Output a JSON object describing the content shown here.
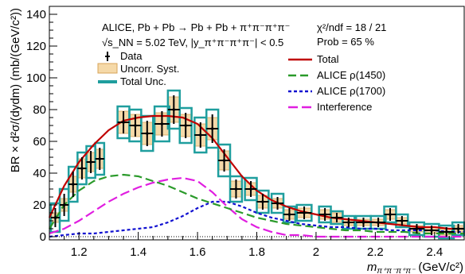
{
  "chart_data": {
    "type": "scatter",
    "xlabel": "m_{π⁺π⁻π⁺π⁻} (GeV/c²)",
    "xlabel_main": "m",
    "xlabel_sub": "π⁺π⁻π⁺π⁻",
    "xlabel_unit": "(GeV/c²)",
    "ylabel": "BR × d²σ/(dydm) (mb/(GeV/c²))",
    "xlim": [
      1.1,
      2.5
    ],
    "ylim": [
      -2,
      145
    ],
    "xticks": [
      1.2,
      1.4,
      1.6,
      1.8,
      2.0,
      2.2,
      2.4
    ],
    "xtick_labels": [
      "1.2",
      "1.4",
      "1.6",
      "1.8",
      "2",
      "2.2",
      "2.4"
    ],
    "yticks": [
      0,
      20,
      40,
      60,
      80,
      100,
      120,
      140
    ],
    "ytick_labels": [
      "0",
      "20",
      "40",
      "60",
      "80",
      "100",
      "120",
      "140"
    ],
    "annotations": {
      "system": "ALICE, Pb + Pb → Pb + Pb + π⁺π⁻π⁺π⁻",
      "energy": "√s_NN = 5.02 TeV, |y_π⁺π⁻π⁺π⁻| < 0.5",
      "chi2": "χ²/ndf = 18 / 21",
      "prob": "Prob = 65 %"
    },
    "legend_left": [
      "Data",
      "Uncorr. Syst.",
      "Total Unc."
    ],
    "legend_right": [
      "Total",
      "ALICE ρ(1450)",
      "ALICE ρ(1700)",
      "Interference"
    ],
    "colors": {
      "total": "#c00000",
      "rho1450": "#2a9a2a",
      "rho1700": "#1010d0",
      "interference": "#e01ee0",
      "syst_fill": "#f5d9a8",
      "syst_edge": "#d8a45a",
      "total_unc": "#1f9e9e"
    },
    "points": {
      "x": [
        1.12,
        1.15,
        1.18,
        1.21,
        1.24,
        1.27,
        1.35,
        1.39,
        1.43,
        1.48,
        1.52,
        1.56,
        1.61,
        1.65,
        1.69,
        1.73,
        1.78,
        1.82,
        1.87,
        1.91,
        1.96,
        2.03,
        2.07,
        2.11,
        2.16,
        2.21,
        2.25,
        2.29,
        2.34,
        2.39,
        2.44,
        2.48
      ],
      "y": [
        12,
        20,
        33,
        43,
        47,
        49,
        72,
        70,
        65,
        71,
        80,
        70,
        64,
        68,
        48,
        30,
        30,
        22,
        21,
        14,
        15,
        14,
        12,
        9,
        9,
        9,
        14,
        10,
        5,
        4,
        3,
        5
      ],
      "yerr": [
        6,
        7,
        8,
        7,
        7,
        7,
        7,
        7,
        8,
        8,
        9,
        8,
        8,
        9,
        7,
        6,
        5,
        5,
        4,
        4,
        4,
        4,
        3,
        3,
        3,
        3,
        4,
        3,
        3,
        3,
        3,
        3
      ],
      "syst": [
        3,
        4,
        5,
        6,
        6,
        6,
        7,
        7,
        7,
        7,
        8,
        7,
        7,
        7,
        6,
        5,
        4,
        4,
        3,
        3,
        3,
        3,
        3,
        2,
        2,
        2,
        3,
        2,
        2,
        2,
        2,
        2
      ],
      "tot": [
        9,
        10,
        11,
        10,
        10,
        10,
        10,
        10,
        11,
        11,
        12,
        11,
        11,
        12,
        10,
        8,
        7,
        7,
        6,
        5,
        5,
        5,
        4,
        4,
        4,
        4,
        5,
        4,
        4,
        4,
        4,
        4
      ],
      "halfwidth": [
        0.015,
        0.015,
        0.015,
        0.015,
        0.015,
        0.015,
        0.02,
        0.02,
        0.02,
        0.025,
        0.02,
        0.02,
        0.02,
        0.02,
        0.02,
        0.02,
        0.02,
        0.02,
        0.02,
        0.02,
        0.025,
        0.02,
        0.02,
        0.02,
        0.025,
        0.025,
        0.02,
        0.02,
        0.025,
        0.025,
        0.025,
        0.02
      ]
    },
    "curves": {
      "x": [
        1.1,
        1.15,
        1.2,
        1.25,
        1.3,
        1.35,
        1.4,
        1.45,
        1.5,
        1.55,
        1.6,
        1.65,
        1.7,
        1.75,
        1.8,
        1.85,
        1.9,
        1.95,
        2.0,
        2.05,
        2.1,
        2.15,
        2.2,
        2.25,
        2.3,
        2.35,
        2.4,
        2.45,
        2.5
      ],
      "total": [
        12,
        32,
        47,
        58,
        67,
        73,
        75,
        76,
        76,
        75,
        71,
        62,
        50,
        38,
        29,
        23,
        19,
        16,
        14,
        12,
        11,
        10,
        9,
        8,
        7,
        6,
        6,
        5,
        5
      ],
      "rho1450": [
        5,
        20,
        29,
        35,
        38,
        39,
        38,
        35,
        32,
        28,
        24,
        21,
        18,
        15,
        12,
        10,
        8,
        7,
        6,
        5,
        4,
        4,
        3,
        3,
        3,
        2,
        2,
        2,
        2
      ],
      "rho1700": [
        0,
        1,
        2,
        2,
        3,
        4,
        5,
        6,
        9,
        13,
        18,
        22,
        22,
        19,
        15,
        12,
        10,
        8,
        7,
        6,
        6,
        5,
        5,
        4,
        4,
        4,
        4,
        3,
        3
      ],
      "interference": [
        2,
        5,
        10,
        16,
        22,
        27,
        31,
        34,
        36,
        37,
        35,
        28,
        19,
        11,
        6,
        3,
        1,
        1,
        0,
        0,
        0,
        0,
        0,
        0,
        0,
        0,
        0,
        0,
        0
      ]
    }
  }
}
